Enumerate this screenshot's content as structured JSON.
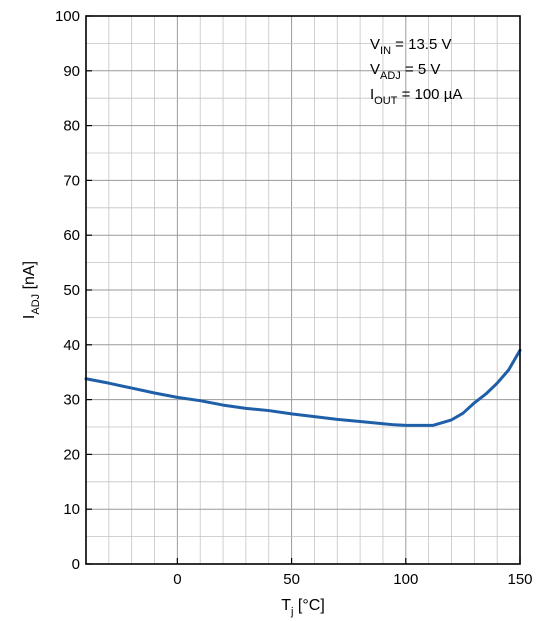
{
  "chart_data": {
    "type": "line",
    "title": "",
    "xlabel": {
      "main": "T",
      "sub": "j",
      "unit": " [°C]"
    },
    "ylabel": {
      "main": "I",
      "sub": "ADJ",
      "unit": " [nA]"
    },
    "xlim": [
      -40,
      150
    ],
    "ylim": [
      0,
      100
    ],
    "xticks": [
      0,
      50,
      100,
      150
    ],
    "yticks": [
      0,
      10,
      20,
      30,
      40,
      50,
      60,
      70,
      80,
      90,
      100
    ],
    "grid": true,
    "annotations": [
      {
        "main": "V",
        "sub": "IN",
        "rest": " = 13.5 V"
      },
      {
        "main": "V",
        "sub": "ADJ",
        "rest": " = 5 V"
      },
      {
        "main": "I",
        "sub": "OUT",
        "rest": " = 100 µA"
      }
    ],
    "series": [
      {
        "color": "#1f5fa8",
        "x": [
          -40,
          -30,
          -20,
          -10,
          0,
          10,
          20,
          30,
          40,
          50,
          60,
          70,
          80,
          90,
          95,
          100,
          105,
          110,
          112,
          120,
          125,
          130,
          135,
          140,
          145,
          150
        ],
        "y": [
          33.8,
          33.0,
          32.1,
          31.2,
          30.4,
          29.8,
          29.0,
          28.4,
          28.0,
          27.4,
          26.9,
          26.4,
          26.0,
          25.6,
          25.4,
          25.3,
          25.3,
          25.3,
          25.3,
          26.3,
          27.5,
          29.4,
          31.0,
          33.0,
          35.4,
          39.0
        ]
      }
    ]
  }
}
